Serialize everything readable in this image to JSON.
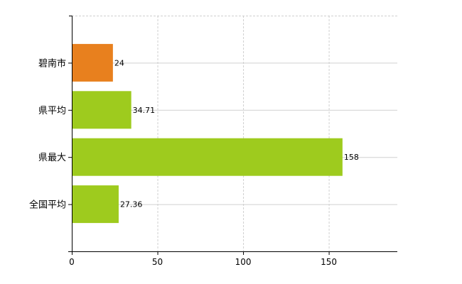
{
  "chart_data": {
    "type": "bar",
    "orientation": "horizontal",
    "title": "",
    "xlabel": "",
    "ylabel": "",
    "categories": [
      "碧南市",
      "県平均",
      "県最大",
      "全国平均"
    ],
    "values": [
      24,
      34.71,
      158,
      27.36
    ],
    "value_labels": [
      "24",
      "34.71",
      "158",
      "27.36"
    ],
    "colors": [
      "#e8801e",
      "#9ecb1e",
      "#9ecb1e",
      "#9ecb1e"
    ],
    "xlim": [
      0,
      190
    ],
    "xticks": [
      0,
      50,
      100,
      150
    ],
    "xtick_labels": [
      "0",
      "50",
      "100",
      "150"
    ],
    "grid": true,
    "legend": "none"
  }
}
